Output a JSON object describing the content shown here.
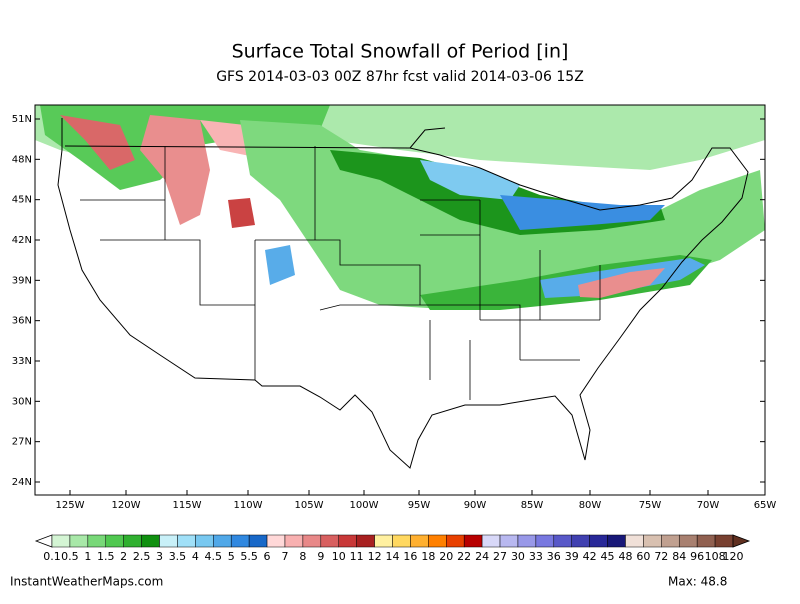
{
  "header": {
    "title": "Surface Total Snowfall of Period [in]",
    "subtitle": "GFS 2014-03-03 00Z 87hr fcst valid 2014-03-06 15Z"
  },
  "map": {
    "lat_labels": [
      "51N",
      "48N",
      "45N",
      "42N",
      "39N",
      "36N",
      "33N",
      "30N",
      "27N",
      "24N"
    ],
    "lon_labels": [
      "125W",
      "120W",
      "115W",
      "110W",
      "105W",
      "100W",
      "95W",
      "90W",
      "85W",
      "80W",
      "75W",
      "70W",
      "65W"
    ]
  },
  "colorbar": {
    "labels": [
      "0.1",
      "0.5",
      "1",
      "1.5",
      "2",
      "2.5",
      "3",
      "3.5",
      "4",
      "4.5",
      "5",
      "5.5",
      "6",
      "7",
      "8",
      "9",
      "10",
      "11",
      "12",
      "14",
      "16",
      "18",
      "20",
      "22",
      "24",
      "27",
      "30",
      "33",
      "36",
      "39",
      "42",
      "45",
      "48",
      "60",
      "72",
      "84",
      "96",
      "108",
      "120"
    ],
    "colors": [
      "#d4f5d4",
      "#a8e8a8",
      "#78d878",
      "#50c850",
      "#30b030",
      "#109010",
      "#c8f0f8",
      "#a0e0f8",
      "#78c8f0",
      "#50a8e8",
      "#3088e0",
      "#1868c8",
      "#ffd8d8",
      "#f8b0b0",
      "#e88888",
      "#d86060",
      "#c83838",
      "#a82020",
      "#fff0a0",
      "#ffd860",
      "#ffb030",
      "#ff8000",
      "#e84000",
      "#b80000",
      "#d8d8f8",
      "#b8b8f0",
      "#9898e8",
      "#7878e0",
      "#5858c8",
      "#4040b0",
      "#282898",
      "#181878",
      "#f0e0d8",
      "#d8c0b0",
      "#c0a090",
      "#a88070",
      "#906050",
      "#784030"
    ]
  },
  "footer": {
    "credit": "InstantWeatherMaps.com",
    "max": "Max:  48.8"
  }
}
